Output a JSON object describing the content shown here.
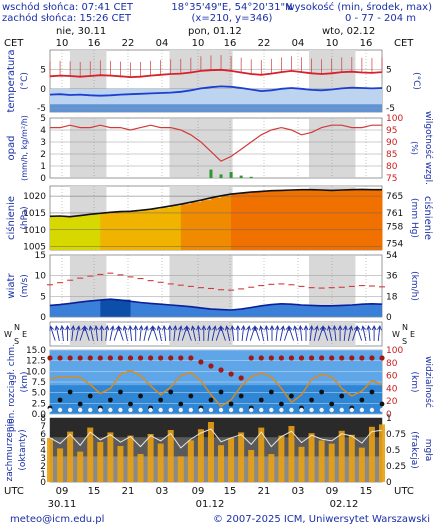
{
  "header": {
    "sunrise": "wschód słońca: 07:41 CET",
    "sunset": "zachód słońca: 15:26 CET",
    "coords": "18°35'49\"E, 54°20'31\"N",
    "grid": "(x=210, y=346)",
    "altitude_label": "wysokość (min, środek, max)",
    "altitude_value": "0 - 77 - 204 m"
  },
  "top_axis": {
    "tz_left": "CET",
    "tz_right": "CET",
    "days": [
      "nie, 30.11",
      "pon, 01.12",
      "wto, 02.12"
    ],
    "hours": [
      "10",
      "16",
      "22",
      "04",
      "10",
      "16",
      "22",
      "04",
      "10",
      "16"
    ]
  },
  "bottom_axis": {
    "tz_left": "UTC",
    "tz_right": "UTC",
    "hours": [
      "09",
      "15",
      "21",
      "03",
      "09",
      "15",
      "21",
      "03",
      "09",
      "15"
    ],
    "dates": [
      "30.11",
      "01.12",
      "02.12"
    ]
  },
  "footer": {
    "email": "meteo@icm.edu.pl",
    "copyright": "© 2007-2025 ICM, Uniwersytet Warszawski"
  },
  "chart_data": [
    {
      "type": "line",
      "name": "temperature",
      "ylabel_left": "temperatura",
      "unit": "(°C)",
      "ylim": [
        -6,
        10
      ],
      "ticks": [
        "5",
        "0",
        "-5"
      ],
      "series": [
        {
          "name": "max",
          "color": "#d8202a",
          "values": [
            3.2,
            3.4,
            3.3,
            3.1,
            3.3,
            3.5,
            3.4,
            3.2,
            3.0,
            3.1,
            3.4,
            3.6,
            3.8,
            3.9,
            4.2,
            4.6,
            4.8,
            4.9,
            4.6,
            4.2,
            3.8,
            3.6,
            3.9,
            4.3,
            4.6,
            4.3,
            4.0,
            3.8,
            4.0,
            4.3,
            4.4,
            4.2,
            4.1,
            4.3
          ]
        },
        {
          "name": "min",
          "color": "#1c3fd0",
          "values": [
            -1.5,
            -1.4,
            -1.6,
            -1.5,
            -1.7,
            -1.8,
            -1.7,
            -1.5,
            -1.4,
            -1.3,
            -1.2,
            -1.1,
            -1.0,
            -0.8,
            -0.4,
            0.1,
            0.4,
            0.6,
            0.5,
            0.2,
            -0.2,
            -0.6,
            -0.4,
            0.0,
            0.2,
            0.0,
            -0.3,
            -0.4,
            -0.2,
            0.1,
            0.3,
            0.2,
            0.1,
            0.2
          ]
        }
      ]
    },
    {
      "type": "bar",
      "name": "precipitation",
      "ylabel_left": "opad",
      "unit_left": "(mm/h, kg/m²/h)",
      "ylabel_right": "wilgotność wzgl.",
      "unit_right": "(%)",
      "ticks_left": [
        "5",
        "4",
        "3",
        "2",
        "1",
        "0"
      ],
      "ticks_right": [
        "100",
        "95",
        "90",
        "85",
        "80",
        "75"
      ],
      "humidity": [
        96,
        96,
        97,
        96,
        96,
        97,
        96,
        96,
        95,
        96,
        97,
        96,
        96,
        95,
        93,
        90,
        86,
        82,
        84,
        87,
        90,
        93,
        95,
        96,
        95,
        93,
        94,
        96,
        97,
        97,
        96,
        96,
        97,
        97
      ],
      "precip": [
        0,
        0,
        0,
        0,
        0,
        0,
        0,
        0,
        0,
        0,
        0,
        0,
        0,
        0,
        0,
        0,
        0.7,
        0.3,
        0.5,
        0.2,
        0.1,
        0,
        0,
        0,
        0,
        0,
        0,
        0,
        0,
        0,
        0,
        0,
        0,
        0
      ]
    },
    {
      "type": "area",
      "name": "pressure",
      "ylabel_left": "ciśnienie",
      "unit_left": "(hPa)",
      "unit_right": "(mm Hg)",
      "ticks_left": [
        "1020",
        "1015",
        "1010",
        "1005"
      ],
      "ticks_right": [
        "765",
        "761",
        "758",
        "754"
      ],
      "ylim": [
        1004,
        1023
      ],
      "values": [
        1014.0,
        1014.1,
        1013.9,
        1014.2,
        1014.6,
        1014.9,
        1015.2,
        1015.4,
        1015.5,
        1015.8,
        1016.1,
        1016.6,
        1017.1,
        1017.6,
        1018.2,
        1018.8,
        1019.5,
        1020.1,
        1020.6,
        1020.9,
        1021.2,
        1021.4,
        1021.6,
        1021.7,
        1021.8,
        1021.9,
        1021.9,
        1021.8,
        1021.7,
        1021.8,
        1021.9,
        1022.0,
        1021.9,
        1021.9
      ]
    },
    {
      "type": "line",
      "name": "wind",
      "ylabel_left": "wiatr",
      "unit_left": "(m/s)",
      "unit_right": "(km/h)",
      "ticks_left": [
        "15",
        "10",
        "5",
        "0"
      ],
      "ticks_right": [
        "54",
        "36",
        "18",
        "0"
      ],
      "ylim": [
        0,
        15
      ],
      "gust": [
        7.8,
        8.3,
        8.9,
        9.4,
        9.9,
        10.3,
        10.6,
        10.2,
        9.7,
        9.3,
        8.8,
        8.4,
        8.0,
        7.7,
        7.4,
        7.1,
        6.9,
        6.6,
        6.5,
        6.8,
        7.2,
        7.6,
        7.9,
        8.0,
        7.8,
        7.4,
        7.1,
        7.0,
        7.1,
        7.2,
        7.4,
        7.6,
        7.5,
        7.3
      ],
      "speed": [
        2.8,
        3.0,
        3.3,
        3.6,
        3.9,
        4.1,
        4.3,
        4.1,
        3.8,
        3.5,
        3.3,
        3.1,
        2.9,
        2.7,
        2.5,
        2.2,
        1.9,
        1.8,
        1.7,
        1.9,
        2.3,
        2.7,
        3.0,
        3.2,
        3.1,
        2.9,
        2.8,
        2.7,
        2.7,
        2.8,
        2.9,
        3.1,
        3.2,
        3.1
      ]
    },
    {
      "type": "scatter",
      "name": "wind_direction",
      "compass": [
        "N",
        "W",
        "E",
        "S"
      ]
    },
    {
      "type": "scatter",
      "name": "visibility",
      "ylabel_left": "pion. rozciągł. chm.",
      "unit_left": "(km)",
      "ylabel_right": "widzialność",
      "unit_right": "(km)",
      "ticks_left": [
        "15.0",
        "12.5",
        "10.0",
        "7.5",
        "5.0",
        "2.5",
        "0.0"
      ],
      "ticks_right": [
        "100",
        "80",
        "60",
        "40",
        "20",
        "0"
      ],
      "visibility": [
        55,
        58,
        58,
        57,
        46,
        32,
        40,
        62,
        68,
        60,
        44,
        30,
        42,
        60,
        65,
        52,
        30,
        12,
        22,
        44,
        58,
        64,
        58,
        40,
        18,
        30,
        54,
        62,
        58,
        40,
        28,
        36,
        52,
        46
      ]
    },
    {
      "type": "area",
      "name": "cloud_cover",
      "ylabel_left": "zachmurzenie",
      "unit_left": "(oktanty)",
      "ylabel_right": "mgła",
      "unit_right": "(frakcja)",
      "ticks_left": [
        "8",
        "7",
        "6",
        "5",
        "4",
        "3",
        "2",
        "1",
        "0"
      ],
      "ticks_right": [
        "1",
        "0.75",
        "0.5",
        "0.25",
        "0"
      ],
      "bars": [
        5.5,
        4.2,
        6.3,
        3.8,
        6.8,
        5.0,
        6.2,
        4.5,
        5.8,
        3.5,
        6.0,
        4.8,
        6.5,
        3.2,
        5.2,
        6.6,
        7.5,
        4.6,
        5.5,
        6.2,
        4.0,
        6.8,
        3.5,
        5.8,
        7.0,
        4.4,
        6.1,
        5.2,
        4.8,
        6.4,
        5.9,
        4.3,
        6.9,
        7.2
      ]
    }
  ]
}
